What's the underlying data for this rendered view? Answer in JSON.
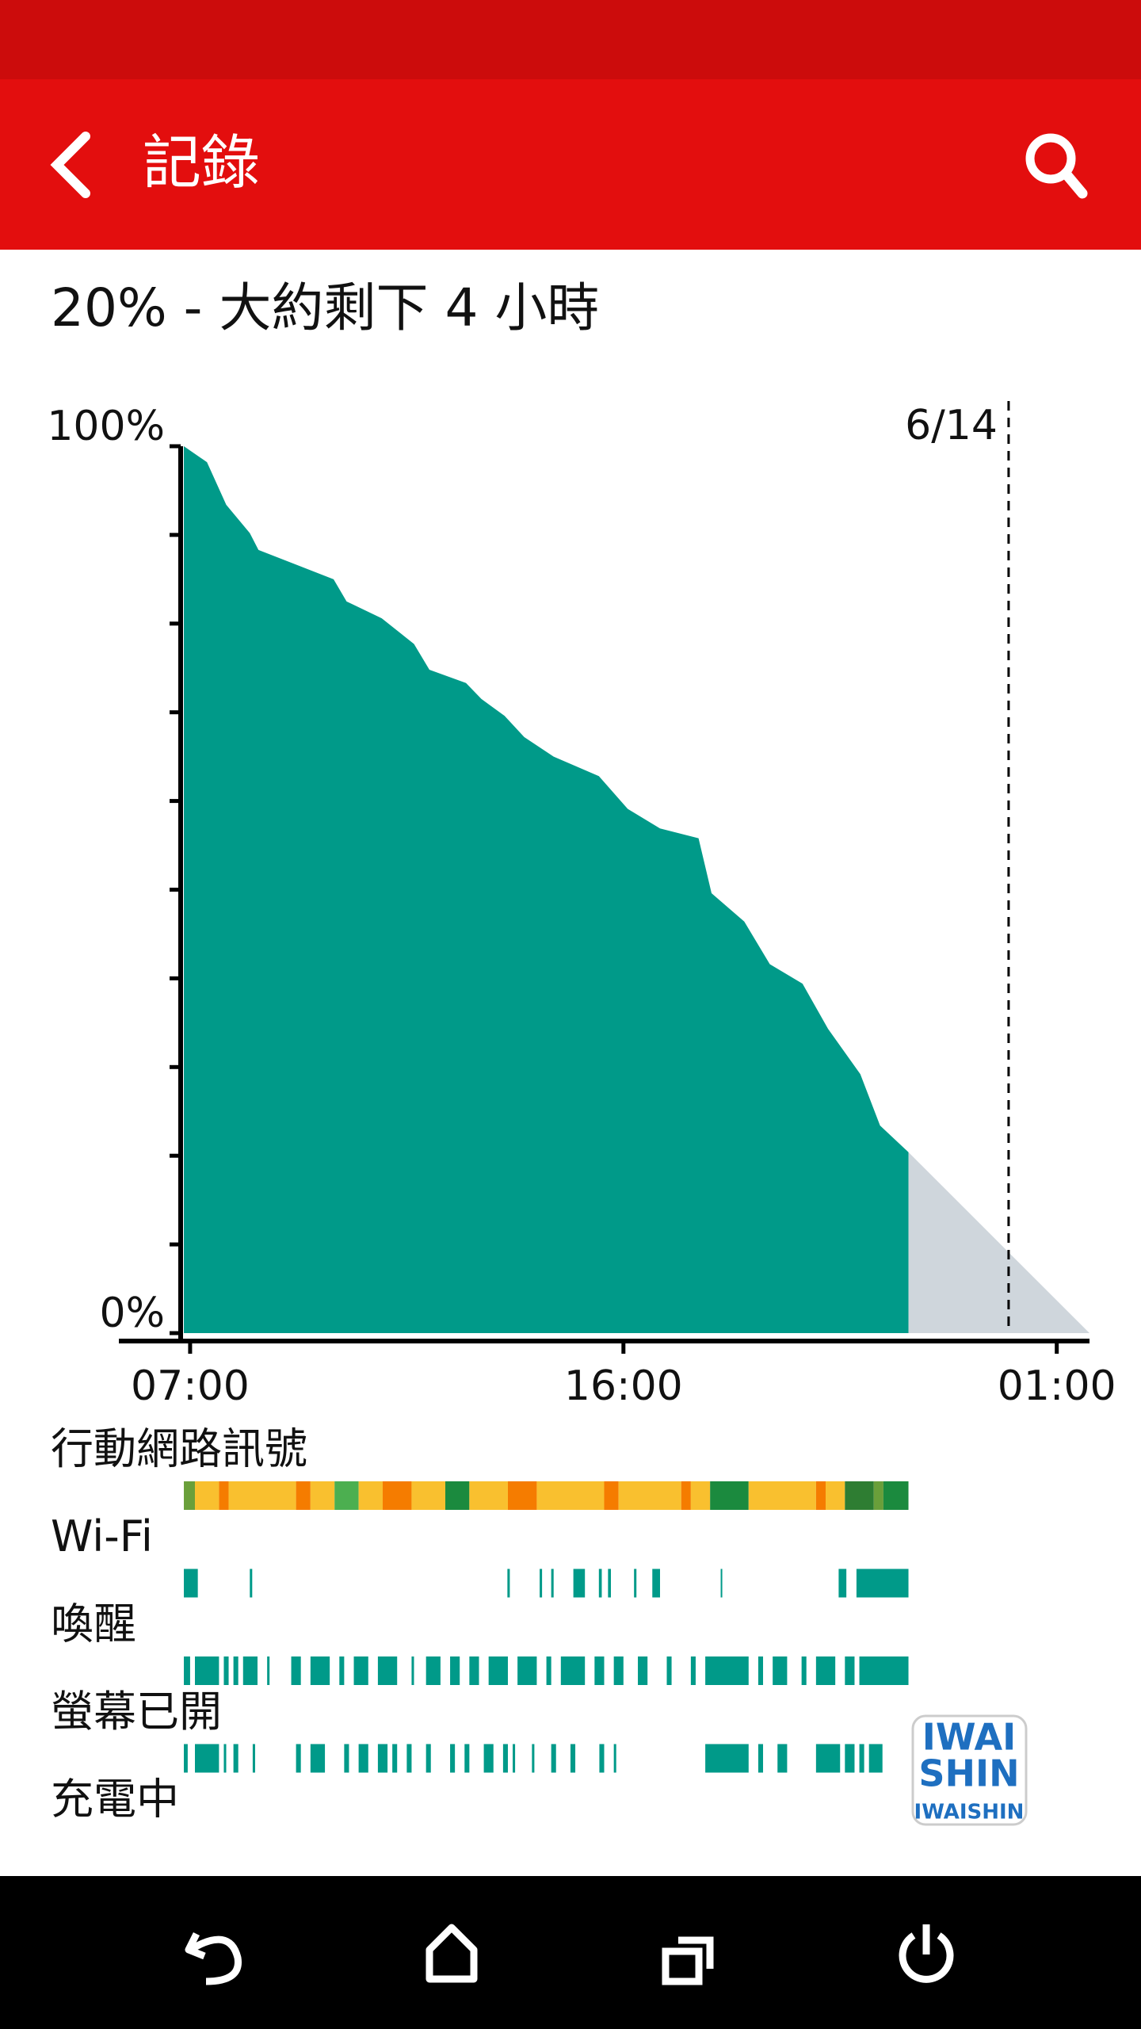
{
  "app_bar": {
    "title": "記錄"
  },
  "summary": "20% - 大約剩下 4 小時",
  "chart_data": {
    "type": "area",
    "color": "#009a89",
    "x": [
      6.87,
      7.35,
      7.75,
      8.24,
      8.42,
      9.98,
      10.25,
      10.98,
      11.65,
      11.97,
      12.73,
      13.05,
      13.53,
      13.94,
      14.55,
      15.49,
      16.09,
      16.76,
      17.56,
      17.83,
      18.51,
      19.04,
      19.72,
      20.25,
      20.92,
      21.33,
      21.92
    ],
    "values": [
      100,
      98.2,
      93.4,
      90.2,
      88.3,
      85,
      82.5,
      80.6,
      77.7,
      74.8,
      73.3,
      71.5,
      69.6,
      67.2,
      65,
      62.8,
      59.1,
      56.9,
      55.8,
      49.6,
      46.4,
      41.6,
      39.4,
      34.3,
      29.2,
      23.4,
      20.4
    ],
    "forecast": {
      "color": "#cfd6dc",
      "x": [
        21.92,
        25.68
      ],
      "values": [
        20.4,
        0
      ]
    },
    "xlim": [
      5.52,
      25.68
    ],
    "xticks": [
      {
        "value": 7,
        "label": "07:00"
      },
      {
        "value": 16,
        "label": "16:00"
      },
      {
        "value": 25,
        "label": "01:00"
      }
    ],
    "ylim": [
      0,
      100
    ],
    "yticks": [
      {
        "value": 0,
        "label": "0%"
      },
      {
        "value": 100,
        "label": "100%"
      }
    ],
    "yminor_ticks": [
      10,
      20,
      30,
      40,
      50,
      60,
      70,
      80,
      90
    ],
    "marker": {
      "value": 24,
      "label": "6/14"
    }
  },
  "tracks": [
    {
      "label": "行動網路訊號",
      "segments": [
        [
          6.87,
          7.1,
          "#6a9f3a"
        ],
        [
          7.1,
          7.6,
          "#f9c02f"
        ],
        [
          7.6,
          7.8,
          "#f57c00"
        ],
        [
          7.8,
          9.2,
          "#f9c02f"
        ],
        [
          9.2,
          9.5,
          "#f57c00"
        ],
        [
          9.5,
          10.0,
          "#f9c02f"
        ],
        [
          10.0,
          10.5,
          "#4caf50"
        ],
        [
          10.5,
          11.0,
          "#f9c02f"
        ],
        [
          11.0,
          11.6,
          "#f57c00"
        ],
        [
          11.6,
          12.3,
          "#f9c02f"
        ],
        [
          12.3,
          12.8,
          "#1b8a3e"
        ],
        [
          12.8,
          13.6,
          "#f9c02f"
        ],
        [
          13.6,
          14.2,
          "#f57c00"
        ],
        [
          14.2,
          15.6,
          "#f9c02f"
        ],
        [
          15.6,
          15.9,
          "#f57c00"
        ],
        [
          15.9,
          17.2,
          "#f9c02f"
        ],
        [
          17.2,
          17.4,
          "#f57c00"
        ],
        [
          17.4,
          17.8,
          "#f9c02f"
        ],
        [
          17.8,
          18.6,
          "#1b8a3e"
        ],
        [
          18.6,
          20.0,
          "#f9c02f"
        ],
        [
          20.0,
          20.2,
          "#f57c00"
        ],
        [
          20.2,
          20.6,
          "#f9c02f"
        ],
        [
          20.6,
          21.2,
          "#2e7d32"
        ],
        [
          21.2,
          21.4,
          "#6a9f3a"
        ],
        [
          21.4,
          21.92,
          "#1b8a3e"
        ]
      ]
    },
    {
      "label": "Wi-Fi",
      "color": "#009a89",
      "segments": [
        [
          6.87,
          7.16
        ],
        [
          8.24,
          8.29
        ],
        [
          13.59,
          13.64
        ],
        [
          14.26,
          14.31
        ],
        [
          14.5,
          14.55
        ],
        [
          14.96,
          15.2
        ],
        [
          15.49,
          15.55
        ],
        [
          15.68,
          15.74
        ],
        [
          16.22,
          16.27
        ],
        [
          16.6,
          16.76
        ],
        [
          18.02,
          18.05
        ],
        [
          20.47,
          20.63
        ],
        [
          20.84,
          21.92
        ]
      ]
    },
    {
      "label": "喚醒",
      "color": "#009a89",
      "segments": [
        [
          6.87,
          7.0
        ],
        [
          7.1,
          7.6
        ],
        [
          7.7,
          7.8
        ],
        [
          7.9,
          8.0
        ],
        [
          8.1,
          8.4
        ],
        [
          8.6,
          8.65
        ],
        [
          9.1,
          9.3
        ],
        [
          9.5,
          9.9
        ],
        [
          10.1,
          10.2
        ],
        [
          10.4,
          10.7
        ],
        [
          10.9,
          11.3
        ],
        [
          11.6,
          11.65
        ],
        [
          11.9,
          12.2
        ],
        [
          12.4,
          12.6
        ],
        [
          12.8,
          13.0
        ],
        [
          13.2,
          13.6
        ],
        [
          13.8,
          14.2
        ],
        [
          14.4,
          14.5
        ],
        [
          14.7,
          15.2
        ],
        [
          15.4,
          15.6
        ],
        [
          15.8,
          16.0
        ],
        [
          16.3,
          16.5
        ],
        [
          16.9,
          17.0
        ],
        [
          17.4,
          17.5
        ],
        [
          17.7,
          18.6
        ],
        [
          18.8,
          18.9
        ],
        [
          19.1,
          19.4
        ],
        [
          19.7,
          19.8
        ],
        [
          20.0,
          20.4
        ],
        [
          20.6,
          20.8
        ],
        [
          20.9,
          21.92
        ]
      ]
    },
    {
      "label": "螢幕已開",
      "color": "#009a89",
      "segments": [
        [
          6.87,
          6.95
        ],
        [
          7.1,
          7.6
        ],
        [
          7.7,
          7.75
        ],
        [
          7.9,
          8.0
        ],
        [
          8.3,
          8.35
        ],
        [
          9.2,
          9.3
        ],
        [
          9.5,
          9.8
        ],
        [
          10.2,
          10.3
        ],
        [
          10.5,
          10.7
        ],
        [
          10.9,
          11.1
        ],
        [
          11.2,
          11.3
        ],
        [
          11.5,
          11.6
        ],
        [
          11.9,
          12.0
        ],
        [
          12.4,
          12.5
        ],
        [
          12.7,
          12.8
        ],
        [
          13.1,
          13.3
        ],
        [
          13.5,
          13.6
        ],
        [
          13.7,
          13.75
        ],
        [
          14.1,
          14.15
        ],
        [
          14.5,
          14.6
        ],
        [
          14.9,
          15.0
        ],
        [
          15.5,
          15.6
        ],
        [
          15.8,
          15.85
        ],
        [
          17.7,
          18.6
        ],
        [
          18.8,
          18.9
        ],
        [
          19.2,
          19.4
        ],
        [
          20.0,
          20.5
        ],
        [
          20.6,
          20.8
        ],
        [
          20.9,
          21.0
        ],
        [
          21.1,
          21.38
        ]
      ]
    },
    {
      "label": "充電中",
      "color": "#009a89",
      "segments": []
    }
  ],
  "watermark": {
    "lines": [
      "IWAI",
      "SHIN",
      "IWAISHIN"
    ]
  }
}
